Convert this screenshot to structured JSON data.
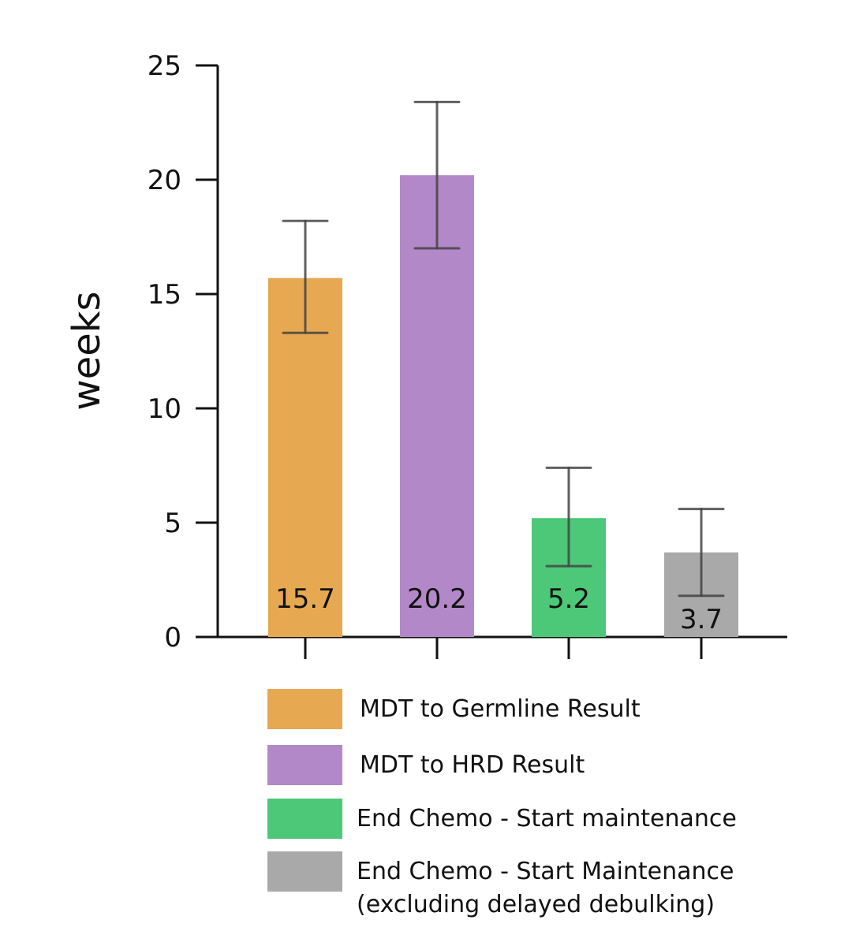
{
  "chart_data": {
    "type": "bar",
    "title": "",
    "xlabel": "",
    "ylabel": "weeks",
    "ylim": [
      0,
      25
    ],
    "yticks": [
      0,
      5,
      10,
      15,
      20,
      25
    ],
    "ytick_labels": [
      "0",
      "5",
      "10",
      "15",
      "20",
      "25"
    ],
    "grid": false,
    "legend_position": "bottom",
    "categories": [
      "MDT to Germline Result",
      "MDT to HRD Result",
      "End Chemo - Start maintenance",
      "End Chemo - Start Maintenance (excluding delayed debulking)"
    ],
    "values": [
      15.7,
      20.2,
      5.2,
      3.7
    ],
    "value_labels": [
      "15.7",
      "20.2",
      "5.2",
      "3.7"
    ],
    "error_low": [
      13.3,
      17.0,
      3.1,
      1.8
    ],
    "error_high": [
      18.2,
      23.4,
      7.4,
      5.6
    ],
    "colors": [
      "#e6a851",
      "#b388c8",
      "#4cc878",
      "#a9a9a9"
    ],
    "legend": [
      {
        "lines": [
          "MDT to Germline Result"
        ],
        "color": "#e6a851"
      },
      {
        "lines": [
          "MDT to HRD Result"
        ],
        "color": "#b388c8"
      },
      {
        "lines": [
          "End Chemo - Start maintenance"
        ],
        "color": "#4cc878"
      },
      {
        "lines": [
          "End Chemo - Start Maintenance",
          "(excluding delayed debulking)"
        ],
        "color": "#a9a9a9"
      }
    ]
  }
}
